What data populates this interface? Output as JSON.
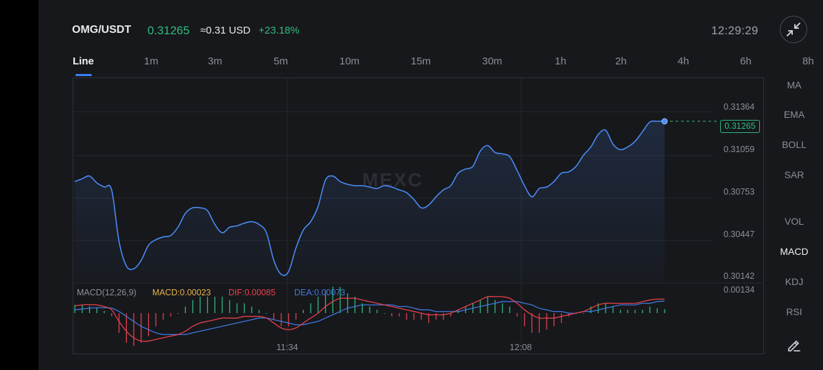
{
  "header": {
    "pair": "OMG/USDT",
    "last_price": "0.31265",
    "approx_usd": "≈0.31 USD",
    "change": "+23.18%",
    "time": "12:29:29"
  },
  "tabs": [
    "Line",
    "1m",
    "3m",
    "5m",
    "10m",
    "15m",
    "30m",
    "1h",
    "2h",
    "4h",
    "6h",
    "8h"
  ],
  "active_tab": "Line",
  "indicators": [
    "MA",
    "EMA",
    "BOLL",
    "SAR",
    "VOL",
    "MACD",
    "KDJ",
    "RSI"
  ],
  "active_indicator": "MACD",
  "watermark": "MEXC",
  "price_tag": "0.31265",
  "macd_legend": {
    "params": "MACD(12,26,9)",
    "macd": "MACD:0.00023",
    "dif": "DIF:0.00085",
    "dea": "DEA:0.00073"
  },
  "colors": {
    "up": "#2fbc7e",
    "down": "#e8414b",
    "line": "#4a8cf7",
    "macd_label": "#e6b34a",
    "dif": "#e8414b",
    "dea": "#3f78e0",
    "params": "#8b9097"
  },
  "chart_data": {
    "type": "line",
    "title": "OMG/USDT",
    "x_ticks": [
      "11:34",
      "12:08"
    ],
    "y_ticks": [
      "0.31364",
      "0.31059",
      "0.30753",
      "0.30447",
      "0.30142"
    ],
    "ylim": [
      0.30142,
      0.31364
    ],
    "grid": true,
    "series": [
      {
        "name": "price",
        "values": [
          0.3083,
          0.3085,
          0.3087,
          0.3082,
          0.3079,
          0.3077,
          0.304,
          0.3022,
          0.302,
          0.3026,
          0.3037,
          0.3041,
          0.3043,
          0.3044,
          0.305,
          0.306,
          0.3064,
          0.3064,
          0.3062,
          0.3052,
          0.3046,
          0.305,
          0.3051,
          0.3053,
          0.3054,
          0.3052,
          0.3046,
          0.3026,
          0.3016,
          0.3018,
          0.3035,
          0.3048,
          0.3054,
          0.3065,
          0.3084,
          0.3087,
          0.3083,
          0.3081,
          0.308,
          0.308,
          0.3079,
          0.3078,
          0.308,
          0.3079,
          0.3077,
          0.3075,
          0.307,
          0.3064,
          0.3066,
          0.3072,
          0.3077,
          0.308,
          0.3089,
          0.3092,
          0.3094,
          0.3105,
          0.3109,
          0.3104,
          0.3103,
          0.3101,
          0.3091,
          0.308,
          0.3072,
          0.3078,
          0.3079,
          0.3083,
          0.3089,
          0.309,
          0.3094,
          0.3102,
          0.3108,
          0.3117,
          0.312,
          0.311,
          0.3106,
          0.3108,
          0.3112,
          0.3119,
          0.3126,
          0.31265,
          0.31265
        ]
      }
    ]
  },
  "macd_data": {
    "type": "bar",
    "title": "MACD(12,26,9)",
    "dif": [
      0.00045,
      0.0005,
      0.00052,
      0.0005,
      0.0004,
      0.0002,
      -0.0005,
      -0.0011,
      -0.0015,
      -0.0017,
      -0.0017,
      -0.0016,
      -0.0015,
      -0.0014,
      -0.0013,
      -0.0011,
      -0.0008,
      -0.0006,
      -0.0005,
      -0.0004,
      -0.0003,
      -0.0003,
      -0.0003,
      -0.0002,
      -0.0002,
      -0.0002,
      -0.0003,
      -0.0006,
      -0.0009,
      -0.001,
      -0.0009,
      -0.0006,
      -0.0003,
      0.0,
      0.0004,
      0.0007,
      0.0009,
      0.0009,
      0.0009,
      0.0008,
      0.0007,
      0.0006,
      0.0005,
      0.0004,
      0.0003,
      0.0002,
      0.0001,
      0.0,
      -0.0001,
      -0.0001,
      -0.0001,
      0.0,
      0.0002,
      0.0004,
      0.0006,
      0.0008,
      0.001,
      0.001,
      0.001,
      0.0009,
      0.0006,
      0.0002,
      -0.0001,
      -0.0003,
      -0.0003,
      -0.0003,
      -0.0002,
      -0.0001,
      0.0,
      0.0001,
      0.0003,
      0.0005,
      0.0006,
      0.0006,
      0.0006,
      0.0006,
      0.0006,
      0.0007,
      0.0008,
      0.00085,
      0.00085
    ],
    "dea": [
      0.0002,
      0.00025,
      0.0003,
      0.00033,
      0.00033,
      0.0003,
      0.0001,
      -0.0002,
      -0.0005,
      -0.0008,
      -0.001,
      -0.0012,
      -0.0013,
      -0.0013,
      -0.0013,
      -0.0013,
      -0.0012,
      -0.0011,
      -0.001,
      -0.0009,
      -0.0008,
      -0.0007,
      -0.0006,
      -0.0005,
      -0.0004,
      -0.0003,
      -0.0003,
      -0.0004,
      -0.0005,
      -0.0006,
      -0.0007,
      -0.0007,
      -0.0006,
      -0.0005,
      -0.0003,
      -0.0001,
      0.0001,
      0.0003,
      0.0004,
      0.0005,
      0.0005,
      0.0005,
      0.0005,
      0.0005,
      0.0004,
      0.0004,
      0.0003,
      0.0002,
      0.0002,
      0.0001,
      0.0001,
      0.0001,
      0.0001,
      0.0002,
      0.0003,
      0.0004,
      0.0005,
      0.0006,
      0.0007,
      0.0007,
      0.0007,
      0.0006,
      0.0005,
      0.0003,
      0.0002,
      0.0001,
      0.0001,
      0.0,
      0.0,
      0.0001,
      0.0001,
      0.0002,
      0.0003,
      0.0004,
      0.0005,
      0.0005,
      0.0005,
      0.0006,
      0.0006,
      0.0007,
      0.00073
    ],
    "max_label": "0.00134"
  }
}
